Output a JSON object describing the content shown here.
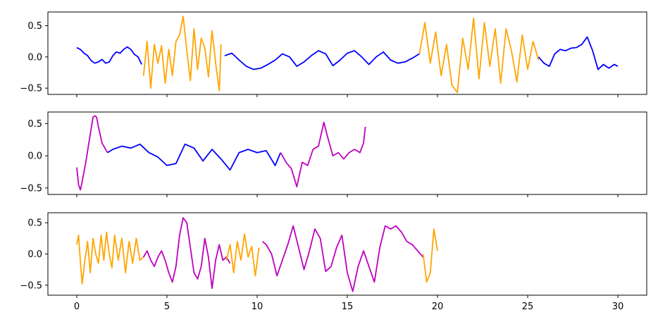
{
  "chart_data": [
    {
      "type": "line",
      "title": "",
      "xlabel": "",
      "ylabel": "",
      "xlim": [
        -1.6,
        31.6
      ],
      "ylim": [
        -0.6,
        0.72
      ],
      "xticks": [
        "0",
        "5",
        "10",
        "15",
        "20",
        "25",
        "30"
      ],
      "show_xtick_labels": false,
      "yticks": [
        "0.5",
        "0.0",
        "−0.5"
      ],
      "grid": false,
      "series": [
        {
          "color": "#0000ff",
          "x": [
            0.0,
            0.2,
            0.4,
            0.6,
            0.8,
            1.0,
            1.2,
            1.4,
            1.6,
            1.8,
            2.0,
            2.2,
            2.4,
            2.6,
            2.8,
            3.0,
            3.2,
            3.4,
            3.6
          ],
          "y": [
            0.15,
            0.12,
            0.06,
            0.02,
            -0.06,
            -0.1,
            -0.08,
            -0.04,
            -0.1,
            -0.08,
            0.02,
            0.08,
            0.06,
            0.12,
            0.16,
            0.12,
            0.04,
            0.0,
            -0.12
          ]
        },
        {
          "color": "#ffa500",
          "x": [
            3.7,
            3.9,
            4.1,
            4.3,
            4.5,
            4.7,
            4.9,
            5.1,
            5.3,
            5.5,
            5.7,
            5.9,
            6.1,
            6.3,
            6.5,
            6.7,
            6.9,
            7.1,
            7.3,
            7.5,
            7.7,
            7.9,
            8.0
          ],
          "y": [
            -0.3,
            0.25,
            -0.5,
            0.2,
            -0.1,
            0.18,
            -0.42,
            0.12,
            -0.3,
            0.25,
            0.35,
            0.65,
            0.1,
            -0.38,
            0.45,
            -0.2,
            0.3,
            0.15,
            -0.32,
            0.42,
            -0.1,
            -0.54,
            0.2
          ]
        },
        {
          "color": "#0000ff",
          "x": [
            8.2,
            8.6,
            9.0,
            9.4,
            9.8,
            10.2,
            10.6,
            11.0,
            11.4,
            11.8,
            12.2,
            12.6,
            13.0,
            13.4,
            13.8,
            14.2,
            14.6,
            15.0,
            15.4,
            15.8,
            16.2,
            16.6,
            17.0,
            17.4,
            17.8,
            18.2,
            18.6,
            19.0
          ],
          "y": [
            0.02,
            0.06,
            -0.05,
            -0.15,
            -0.2,
            -0.18,
            -0.12,
            -0.05,
            0.05,
            0.0,
            -0.15,
            -0.08,
            0.02,
            0.1,
            0.05,
            -0.14,
            -0.05,
            0.06,
            0.1,
            0.0,
            -0.12,
            0.0,
            0.08,
            -0.05,
            -0.1,
            -0.08,
            -0.02,
            0.05
          ]
        },
        {
          "color": "#ffa500",
          "x": [
            19.0,
            19.3,
            19.6,
            19.9,
            20.2,
            20.5,
            20.8,
            21.1,
            21.4,
            21.7,
            22.0,
            22.3,
            22.6,
            22.9,
            23.2,
            23.5,
            23.8,
            24.1,
            24.4,
            24.7,
            25.0,
            25.3,
            25.6
          ],
          "y": [
            0.05,
            0.55,
            -0.1,
            0.4,
            -0.3,
            0.2,
            -0.45,
            -0.57,
            0.3,
            -0.2,
            0.62,
            -0.35,
            0.55,
            -0.15,
            0.45,
            -0.42,
            0.45,
            0.1,
            -0.4,
            0.35,
            -0.2,
            0.25,
            -0.05
          ]
        },
        {
          "color": "#0000ff",
          "x": [
            25.6,
            25.9,
            26.2,
            26.5,
            26.8,
            27.1,
            27.4,
            27.7,
            28.0,
            28.3,
            28.6,
            28.9,
            29.2,
            29.5,
            29.8,
            30.0
          ],
          "y": [
            0.0,
            -0.1,
            -0.15,
            0.05,
            0.12,
            0.1,
            0.14,
            0.15,
            0.2,
            0.32,
            0.1,
            -0.2,
            -0.12,
            -0.18,
            -0.12,
            -0.15
          ]
        }
      ]
    },
    {
      "type": "line",
      "title": "",
      "xlabel": "",
      "ylabel": "",
      "xlim": [
        -1.6,
        31.6
      ],
      "ylim": [
        -0.6,
        0.68
      ],
      "xticks": [
        "0",
        "5",
        "10",
        "15",
        "20",
        "25",
        "30"
      ],
      "show_xtick_labels": false,
      "yticks": [
        "0.5",
        "0.0",
        "−0.5"
      ],
      "grid": false,
      "series": [
        {
          "color": "#bf00bf",
          "x": [
            0.0,
            0.1,
            0.2,
            0.3,
            0.5,
            0.7,
            0.9,
            1.0,
            1.1,
            1.2,
            1.4,
            1.6,
            1.7
          ],
          "y": [
            -0.18,
            -0.45,
            -0.53,
            -0.4,
            -0.1,
            0.25,
            0.6,
            0.62,
            0.6,
            0.45,
            0.2,
            0.1,
            0.05
          ]
        },
        {
          "color": "#0000ff",
          "x": [
            1.7,
            2.0,
            2.5,
            3.0,
            3.5,
            4.0,
            4.5,
            5.0,
            5.5,
            6.0,
            6.5,
            7.0,
            7.5,
            8.0,
            8.5,
            9.0,
            9.5,
            10.0,
            10.5,
            11.0,
            11.3
          ],
          "y": [
            0.05,
            0.1,
            0.15,
            0.12,
            0.18,
            0.05,
            -0.02,
            -0.15,
            -0.12,
            0.18,
            0.12,
            -0.08,
            0.1,
            -0.05,
            -0.22,
            0.05,
            0.1,
            0.05,
            0.08,
            -0.15,
            0.05
          ]
        },
        {
          "color": "#bf00bf",
          "x": [
            11.3,
            11.6,
            11.9,
            12.2,
            12.5,
            12.8,
            13.1,
            13.4,
            13.7,
            13.9,
            14.2,
            14.5,
            14.8,
            15.1,
            15.4,
            15.7,
            15.9,
            16.0
          ],
          "y": [
            0.05,
            -0.1,
            -0.2,
            -0.48,
            -0.1,
            -0.15,
            0.1,
            0.15,
            0.52,
            0.3,
            0.0,
            0.05,
            -0.05,
            0.05,
            0.1,
            0.05,
            0.2,
            0.45
          ]
        }
      ]
    },
    {
      "type": "line",
      "title": "",
      "xlabel": "",
      "ylabel": "",
      "xlim": [
        -1.6,
        31.6
      ],
      "ylim": [
        -0.66,
        0.66
      ],
      "xticks": [
        "0",
        "5",
        "10",
        "15",
        "20",
        "25",
        "30"
      ],
      "show_xtick_labels": true,
      "yticks": [
        "0.5",
        "0.0",
        "−0.5"
      ],
      "grid": false,
      "series": [
        {
          "color": "#ffa500",
          "x": [
            0.0,
            0.1,
            0.2,
            0.3,
            0.45,
            0.6,
            0.75,
            0.9,
            1.05,
            1.2,
            1.35,
            1.5,
            1.65,
            1.8,
            1.95,
            2.1,
            2.3,
            2.5,
            2.7,
            2.9,
            3.1,
            3.3,
            3.5,
            3.7
          ],
          "y": [
            0.15,
            0.3,
            -0.12,
            -0.48,
            -0.1,
            0.2,
            -0.3,
            0.25,
            0.0,
            -0.15,
            0.3,
            -0.1,
            0.35,
            0.0,
            -0.22,
            0.3,
            -0.1,
            0.25,
            -0.3,
            0.2,
            -0.15,
            0.25,
            -0.1,
            -0.05
          ]
        },
        {
          "color": "#bf00bf",
          "x": [
            3.7,
            3.9,
            4.1,
            4.3,
            4.5,
            4.7,
            4.9,
            5.1,
            5.3,
            5.5,
            5.7,
            5.9,
            6.1,
            6.3,
            6.5,
            6.7,
            6.9,
            7.1,
            7.3,
            7.5,
            7.7,
            7.9,
            8.1,
            8.3,
            8.5
          ],
          "y": [
            -0.05,
            0.05,
            -0.1,
            -0.2,
            -0.05,
            0.05,
            -0.1,
            -0.3,
            -0.45,
            -0.2,
            0.3,
            0.58,
            0.5,
            0.1,
            -0.3,
            -0.4,
            -0.2,
            0.25,
            -0.05,
            -0.55,
            -0.1,
            0.15,
            -0.1,
            -0.05,
            -0.15
          ]
        },
        {
          "color": "#ffa500",
          "x": [
            8.3,
            8.5,
            8.7,
            8.9,
            9.1,
            9.3,
            9.5,
            9.7,
            9.9,
            10.1
          ],
          "y": [
            -0.1,
            0.15,
            -0.3,
            0.2,
            -0.1,
            0.32,
            -0.05,
            0.12,
            -0.35,
            0.1
          ]
        },
        {
          "color": "#bf00bf",
          "x": [
            10.3,
            10.5,
            10.8,
            11.1,
            11.4,
            11.7,
            12.0,
            12.3,
            12.6,
            12.9,
            13.2,
            13.5,
            13.8,
            14.1,
            14.4,
            14.7,
            15.0,
            15.3,
            15.6,
            15.9,
            16.2,
            16.5,
            16.8,
            17.1,
            17.4,
            17.7,
            18.0,
            18.3,
            18.6,
            18.9,
            19.2
          ],
          "y": [
            0.2,
            0.15,
            0.0,
            -0.35,
            -0.1,
            0.15,
            0.45,
            0.1,
            -0.25,
            0.05,
            0.4,
            0.25,
            -0.28,
            -0.2,
            0.1,
            0.3,
            -0.3,
            -0.6,
            -0.2,
            0.05,
            -0.2,
            -0.45,
            0.1,
            0.45,
            0.4,
            0.45,
            0.35,
            0.2,
            0.15,
            0.05,
            -0.05
          ]
        },
        {
          "color": "#ffa500",
          "x": [
            19.2,
            19.4,
            19.6,
            19.8,
            20.0
          ],
          "y": [
            0.0,
            -0.45,
            -0.3,
            0.4,
            0.05
          ]
        }
      ]
    }
  ]
}
